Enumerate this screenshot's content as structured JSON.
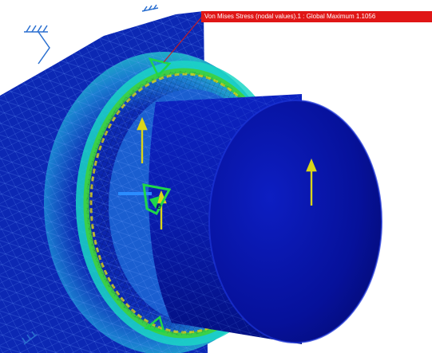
{
  "viewer": {
    "result_label": "Von Mises Stress (nodal values).1 : Global Maximum 1.1056",
    "colors": {
      "label_background": "#e01616",
      "part_base": "#0a1ea8",
      "part_dark": "#02106e",
      "stress_mid": "#19c2e6",
      "stress_high": "#3ed23b",
      "stress_peak": "#d8d21a",
      "load_arrow": "#d9d51a",
      "constraint_symbol": "#2a6fd0",
      "axis_triad": "#1ed64a"
    },
    "icons": [
      "clamp-constraint-icon",
      "force-arrow-icon",
      "axis-triad-icon",
      "stress-result-label"
    ]
  }
}
